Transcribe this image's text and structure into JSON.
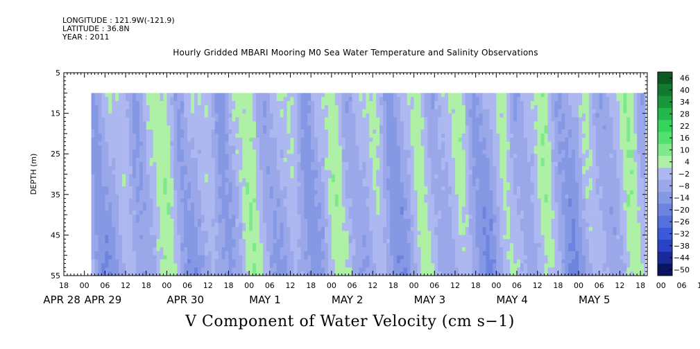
{
  "header": {
    "longitude": "LONGITUDE : 121.9W(-121.9)",
    "latitude": "LATITUDE : 36.8N",
    "year": "YEAR : 2011"
  },
  "title": "Hourly Gridded MBARI Mooring M0 Sea Water Temperature and Salinity Observations",
  "bottom_title": "V Component of Water Velocity (cm s−1)",
  "chart_data": {
    "type": "heatmap",
    "title": "Hourly Gridded MBARI Mooring M0 Sea Water Temperature and Salinity Observations",
    "variable": "V Component of Water Velocity (cm s−1)",
    "ylabel": "DEPTH (m)",
    "y_ticks": [
      "5",
      "15",
      "25",
      "35",
      "45",
      "55"
    ],
    "ylim": [
      55,
      5
    ],
    "data_depth_range": [
      10,
      55
    ],
    "x_hour_ticks": [
      "18",
      "00",
      "06",
      "12",
      "18",
      "00",
      "06",
      "12",
      "18",
      "00",
      "06",
      "12",
      "18",
      "00",
      "06",
      "12",
      "18",
      "00",
      "06",
      "12",
      "18",
      "00",
      "06",
      "12",
      "18",
      "00",
      "06",
      "12",
      "18",
      "00",
      "06",
      "12",
      "18"
    ],
    "x_date_labels": [
      {
        "label": "APR 28",
        "index": 0
      },
      {
        "label": "APR 29",
        "index": 1
      },
      {
        "label": "APR 30",
        "index": 2
      },
      {
        "label": "MAY  1",
        "index": 3
      },
      {
        "label": "MAY  2",
        "index": 4
      },
      {
        "label": "MAY  3",
        "index": 5
      },
      {
        "label": "MAY  4",
        "index": 6
      },
      {
        "label": "MAY  5",
        "index": 7
      }
    ],
    "time_range": [
      "2011-04-28 18:00",
      "2011-05-05 20:00"
    ],
    "data_start": "2011-04-29 02:00",
    "colorbar": {
      "levels": [
        "-50",
        "-44",
        "-38",
        "-32",
        "-26",
        "-20",
        "-14",
        "-8",
        "-2",
        "4",
        "10",
        "16",
        "22",
        "28",
        "34",
        "40",
        "46"
      ],
      "colors": {
        "-50": "#0b1463",
        "-44": "#1a2a9a",
        "-38": "#2a42c4",
        "-32": "#3a5ad8",
        "-26": "#5370dc",
        "-20": "#6c84e0",
        "-14": "#8498e4",
        "-8": "#9aa8ea",
        "-2": "#aeb8f0",
        "4": "#aef0a6",
        "10": "#7de98a",
        "16": "#52e070",
        "22": "#33d65a",
        "28": "#24b84a",
        "34": "#1a963a",
        "40": "#127a2e",
        "46": "#0b5a22"
      }
    }
  }
}
